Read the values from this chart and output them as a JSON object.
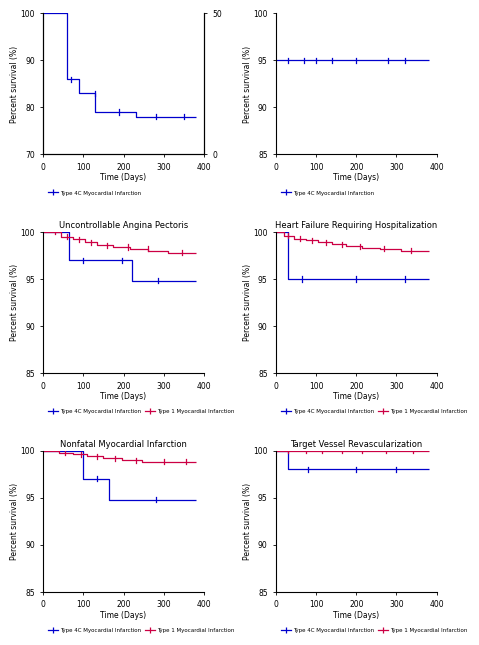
{
  "plots": [
    {
      "title": "",
      "ylabel": "Percent survival (%)",
      "ylim": [
        70,
        100
      ],
      "yticks": [
        70,
        80,
        90,
        100
      ],
      "has_right_axis": true,
      "right_ylim": [
        0,
        50
      ],
      "right_yticks": [
        0,
        50
      ],
      "blue": {
        "x": [
          0,
          60,
          60,
          90,
          90,
          130,
          130,
          230,
          230,
          380
        ],
        "y": [
          100,
          100,
          86,
          86,
          83,
          83,
          79,
          79,
          78,
          78
        ]
      },
      "red": {
        "x": [],
        "y": []
      },
      "blue_ticks": [
        70,
        130,
        190,
        280,
        350
      ],
      "red_ticks": []
    },
    {
      "title": "",
      "ylabel": "Percent survival (%)",
      "ylim": [
        85,
        100
      ],
      "yticks": [
        85,
        90,
        95,
        100
      ],
      "has_right_axis": false,
      "blue": {
        "x": [
          0,
          380
        ],
        "y": [
          95,
          95
        ]
      },
      "red": {
        "x": [],
        "y": []
      },
      "blue_ticks": [
        30,
        70,
        100,
        140,
        200,
        280,
        320
      ],
      "red_ticks": []
    },
    {
      "title": "Uncontrollable Angina Pectoris",
      "ylabel": "Percent survival (%)",
      "ylim": [
        85,
        100
      ],
      "yticks": [
        85,
        90,
        95,
        100
      ],
      "has_right_axis": false,
      "blue": {
        "x": [
          0,
          65,
          65,
          220,
          220,
          380
        ],
        "y": [
          100,
          100,
          97,
          97,
          94.8,
          94.8
        ]
      },
      "red": {
        "x": [
          0,
          45,
          45,
          75,
          75,
          105,
          105,
          135,
          135,
          175,
          175,
          215,
          215,
          260,
          260,
          310,
          310,
          380
        ],
        "y": [
          100,
          100,
          99.5,
          99.5,
          99.2,
          99.2,
          98.9,
          98.9,
          98.6,
          98.6,
          98.4,
          98.4,
          98.2,
          98.2,
          98.0,
          98.0,
          97.8,
          97.8
        ]
      },
      "blue_ticks": [
        100,
        195,
        285
      ],
      "red_ticks": [
        30,
        60,
        90,
        120,
        160,
        210,
        260,
        345
      ]
    },
    {
      "title": "Heart Failure Requiring Hospitalization",
      "ylabel": "Percent survival (%)",
      "ylim": [
        85,
        100
      ],
      "yticks": [
        85,
        90,
        95,
        100
      ],
      "has_right_axis": false,
      "blue": {
        "x": [
          0,
          30,
          30,
          380
        ],
        "y": [
          100,
          100,
          95,
          95
        ]
      },
      "red": {
        "x": [
          0,
          20,
          20,
          45,
          45,
          75,
          75,
          105,
          105,
          140,
          140,
          175,
          175,
          215,
          215,
          260,
          260,
          310,
          310,
          380
        ],
        "y": [
          100,
          100,
          99.6,
          99.6,
          99.3,
          99.3,
          99.1,
          99.1,
          98.9,
          98.9,
          98.7,
          98.7,
          98.5,
          98.5,
          98.3,
          98.3,
          98.2,
          98.2,
          98.0,
          98.0
        ]
      },
      "blue_ticks": [
        65,
        200,
        320
      ],
      "red_ticks": [
        30,
        60,
        90,
        125,
        165,
        210,
        270,
        335
      ]
    },
    {
      "title": "Nonfatal Myocardial Infarction",
      "ylabel": "Percent survival (%)",
      "ylim": [
        85,
        100
      ],
      "yticks": [
        85,
        90,
        95,
        100
      ],
      "has_right_axis": false,
      "blue": {
        "x": [
          0,
          100,
          100,
          165,
          165,
          380
        ],
        "y": [
          100,
          100,
          97.0,
          97.0,
          94.8,
          94.8
        ]
      },
      "red": {
        "x": [
          0,
          40,
          40,
          75,
          75,
          110,
          110,
          150,
          150,
          195,
          195,
          245,
          245,
          380
        ],
        "y": [
          100,
          100,
          99.8,
          99.8,
          99.6,
          99.6,
          99.4,
          99.4,
          99.2,
          99.2,
          99.0,
          99.0,
          98.8,
          98.8
        ]
      },
      "blue_ticks": [
        135,
        280
      ],
      "red_ticks": [
        55,
        95,
        135,
        180,
        230,
        300,
        355
      ]
    },
    {
      "title": "Target Vessel Revascularization",
      "ylabel": "Percent survival (%)",
      "ylim": [
        85,
        100
      ],
      "yticks": [
        85,
        90,
        95,
        100
      ],
      "has_right_axis": false,
      "blue": {
        "x": [
          0,
          30,
          30,
          380
        ],
        "y": [
          100,
          100,
          98.0,
          98.0
        ]
      },
      "red": {
        "x": [
          0,
          15,
          15,
          380
        ],
        "y": [
          100,
          100,
          100.0,
          100.0
        ]
      },
      "blue_ticks": [
        80,
        200,
        300
      ],
      "red_ticks": [
        30,
        75,
        115,
        165,
        215,
        275,
        340
      ]
    }
  ],
  "blue_color": "#0000CD",
  "red_color": "#CC0044",
  "legend_blue": "Type 4C Myocardial Infarction",
  "legend_red": "Type 1 Myocardial Infarction",
  "xlabel": "Time (Days)",
  "xticks": [
    0,
    100,
    200,
    300,
    400
  ],
  "xlim": [
    0,
    400
  ]
}
